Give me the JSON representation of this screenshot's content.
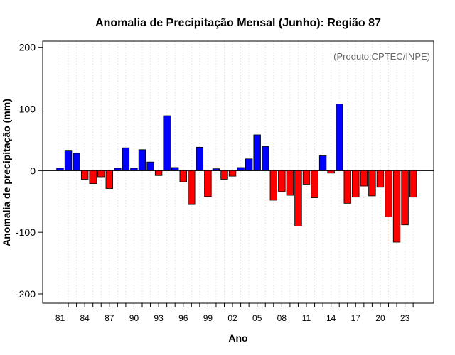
{
  "chart_data": {
    "type": "bar",
    "title": "Anomalia de Precipitação Mensal (Junho): Região 87",
    "xlabel": "Ano",
    "ylabel": "Anomalia de precipitação (mm)",
    "annotation": "(Produto:CPTEC/INPE)",
    "ylim": [
      -215,
      210
    ],
    "yticks": [
      -200,
      -100,
      0,
      100,
      200
    ],
    "ytick_labels": [
      "-200",
      "-100",
      "0",
      "100",
      "200"
    ],
    "xtick_labels": [
      "81",
      "84",
      "87",
      "90",
      "93",
      "96",
      "99",
      "02",
      "05",
      "08",
      "11",
      "14",
      "17",
      "20",
      "23"
    ],
    "x": [
      1981,
      1982,
      1983,
      1984,
      1985,
      1986,
      1987,
      1988,
      1989,
      1990,
      1991,
      1992,
      1993,
      1994,
      1995,
      1996,
      1997,
      1998,
      1999,
      2000,
      2001,
      2002,
      2003,
      2004,
      2005,
      2006,
      2007,
      2008,
      2009,
      2010,
      2011,
      2012,
      2013,
      2014,
      2015,
      2016,
      2017,
      2018,
      2019,
      2020,
      2021,
      2022,
      2023,
      2024
    ],
    "values": [
      4,
      33,
      28,
      -14,
      -21,
      -10,
      -29,
      4,
      37,
      4,
      34,
      14,
      -8,
      89,
      5,
      -18,
      -55,
      38,
      -42,
      3,
      -14,
      -9,
      5,
      19,
      58,
      39,
      -48,
      -34,
      -40,
      -90,
      -22,
      -44,
      24,
      -4,
      108,
      -53,
      -43,
      -25,
      -41,
      -27,
      -75,
      -116,
      -88,
      -43
    ],
    "positive_color": "#0000ff",
    "negative_color": "#ff0000",
    "grid": "vertical dotted",
    "legend": "none"
  }
}
